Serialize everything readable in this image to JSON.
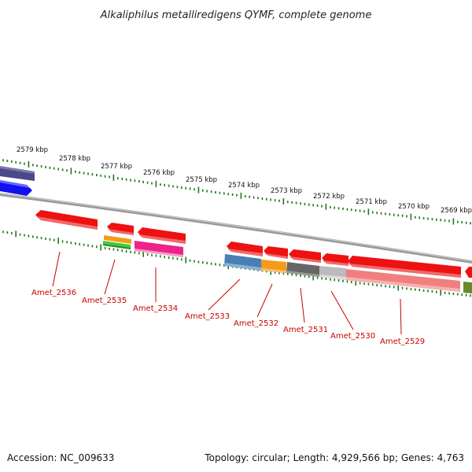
{
  "title": "Alkaliphilus metalliredigens QYMF, complete genome",
  "accession": "Accession: NC_009633",
  "summary": "Topology: circular; Length: 4,929,566 bp; Genes: 4,763",
  "kbp_labels": [
    "2579 kbp",
    "2578 kbp",
    "2577 kbp",
    "2576 kbp",
    "2575 kbp",
    "2574 kbp",
    "2573 kbp",
    "2572 kbp",
    "2571 kbp",
    "2570 kbp",
    "2569 kbp"
  ],
  "gene_labels": [
    "Amet_2536",
    "Amet_2535",
    "Amet_2534",
    "Amet_2533",
    "Amet_2532",
    "Amet_2531",
    "Amet_2530",
    "Amet_2529"
  ],
  "colors": {
    "backbone": "#888888",
    "tick": "#1a7a1a",
    "label": "#c80000",
    "red": "#ee1111",
    "blue": "#1111ee",
    "indigo": "#4a4a8a",
    "orange": "#f59a1a",
    "green": "#44cc33",
    "magenta": "#ee2288",
    "steel": "#4a7fb5",
    "darkgray": "#666666",
    "lightgray": "#bbbbbb",
    "pink": "#f08080",
    "olive": "#6a8a2a"
  }
}
